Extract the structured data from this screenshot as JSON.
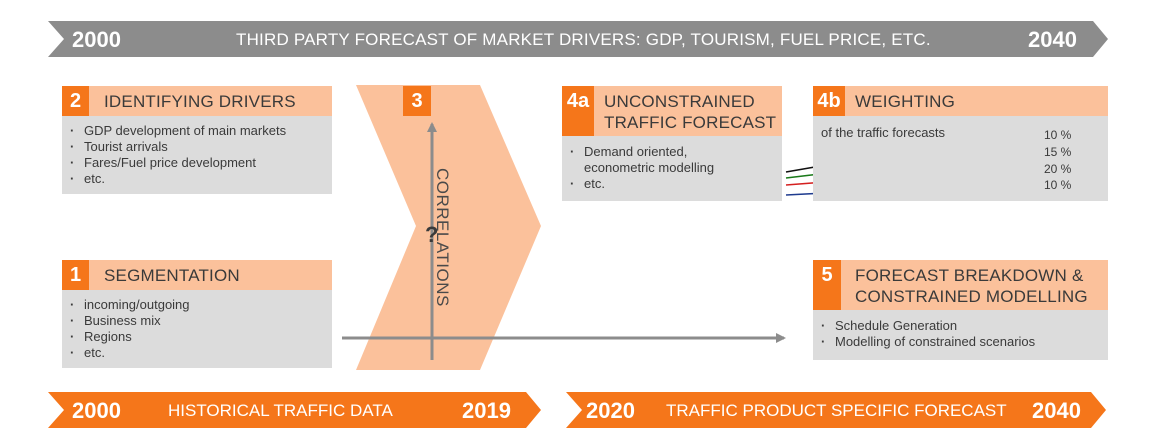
{
  "top_banner": {
    "start_year": "2000",
    "title": "THIRD PARTY FORECAST OF MARKET DRIVERS: GDP, TOURISM, FUEL PRICE, ETC.",
    "end_year": "2040"
  },
  "bottom_left_banner": {
    "start_year": "2000",
    "title": "HISTORICAL TRAFFIC DATA",
    "end_year": "2019"
  },
  "bottom_right_banner": {
    "start_year": "2020",
    "title": "TRAFFIC PRODUCT SPECIFIC FORECAST",
    "end_year": "2040"
  },
  "box_2": {
    "number": "2",
    "title": "IDENTIFYING DRIVERS",
    "items": [
      "GDP development of main markets",
      "Tourist arrivals",
      "Fares/Fuel price development",
      "etc."
    ]
  },
  "box_1": {
    "number": "1",
    "title": "SEGMENTATION",
    "items": [
      "incoming/outgoing",
      "Business mix",
      "Regions",
      "etc."
    ]
  },
  "box_3": {
    "number": "3",
    "vertical_label": "CORRELATIONS",
    "question_mark": "?"
  },
  "box_4a": {
    "number": "4a",
    "title_line1": "UNCONSTRAINED",
    "title_line2": "TRAFFIC FORECAST",
    "items": [
      "Demand oriented,",
      "econometric modelling",
      "etc."
    ]
  },
  "box_4b": {
    "number": "4b",
    "title": "WEIGHTING",
    "subtitle": "of the traffic forecasts",
    "weights": [
      {
        "value": "10 %",
        "color": "#111111"
      },
      {
        "value": "15 %",
        "color": "#1a7a1a"
      },
      {
        "value": "20 %",
        "color": "#d42020"
      },
      {
        "value": "10 %",
        "color": "#1f3c8f"
      }
    ]
  },
  "box_5": {
    "number": "5",
    "title_line1": "FORECAST BREAKDOWN &",
    "title_line2": "CONSTRAINED MODELLING",
    "items": [
      "Schedule Generation",
      "Modelling of constrained scenarios"
    ]
  },
  "colors": {
    "accent_orange": "#f5761a",
    "light_orange": "#fbc19b",
    "gray_banner": "#8c8c8c",
    "body_gray": "#dcdcdc",
    "connector_gray": "#8c8c8c"
  }
}
